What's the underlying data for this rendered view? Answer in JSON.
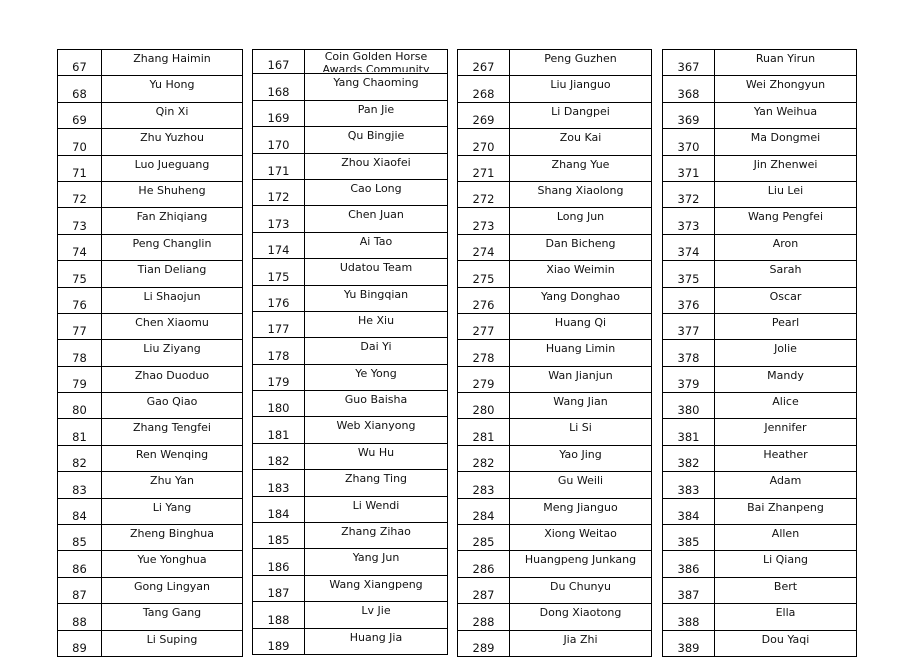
{
  "tables": [
    {
      "start": 67,
      "names": [
        "Zhang Haimin",
        "Yu Hong",
        "Qin Xi",
        "Zhu Yuzhou",
        "Luo Jueguang",
        "He Shuheng",
        "Fan Zhiqiang",
        "Peng Changlin",
        "Tian Deliang",
        "Li Shaojun",
        "Chen Xiaomu",
        "Liu Ziyang",
        "Zhao Duoduo",
        "Gao Qiao",
        "Zhang Tengfei",
        "Ren Wenqing",
        "Zhu Yan",
        "Li Yang",
        "Zheng Binghua",
        "Yue Yonghua",
        "Gong Lingyan",
        "Tang Gang",
        "Li Suping"
      ]
    },
    {
      "start": 167,
      "names": [
        "Coin Golden Horse Awards Community",
        "Yang Chaoming",
        "Pan Jie",
        "Qu Bingjie",
        "Zhou Xiaofei",
        "Cao Long",
        "Chen Juan",
        "Ai Tao",
        "Udatou Team",
        "Yu Bingqian",
        "He Xiu",
        "Dai Yi",
        "Ye Yong",
        "Guo Baisha",
        "Web Xianyong",
        "Wu Hu",
        "Zhang Ting",
        "Li Wendi",
        "Zhang Zihao",
        "Yang Jun",
        "Wang Xiangpeng",
        "Lv Jie",
        "Huang Jia"
      ]
    },
    {
      "start": 267,
      "names": [
        "Peng Guzhen",
        "Liu Jianguo",
        "Li Dangpei",
        "Zou Kai",
        "Zhang Yue",
        "Shang Xiaolong",
        "Long Jun",
        "Dan Bicheng",
        "Xiao Weimin",
        "Yang Donghao",
        "Huang Qi",
        "Huang Limin",
        "Wan Jianjun",
        "Wang Jian",
        "Li Si",
        "Yao Jing",
        "Gu Weili",
        "Meng Jianguo",
        "Xiong Weitao",
        "Huangpeng Junkang",
        "Du Chunyu",
        "Dong Xiaotong",
        "Jia Zhi"
      ]
    },
    {
      "start": 367,
      "names": [
        "Ruan Yirun",
        "Wei Zhongyun",
        "Yan Weihua",
        "Ma Dongmei",
        "Jin Zhenwei",
        "Liu Lei",
        "Wang Pengfei",
        "Aron",
        "Sarah",
        "Oscar",
        "Pearl",
        "Jolie",
        "Mandy",
        "Alice",
        "Jennifer",
        "Heather",
        "Adam",
        "Bai Zhanpeng",
        "Allen",
        "Li Qiang",
        "Bert",
        "Ella",
        "Dou Yaqi"
      ]
    }
  ]
}
